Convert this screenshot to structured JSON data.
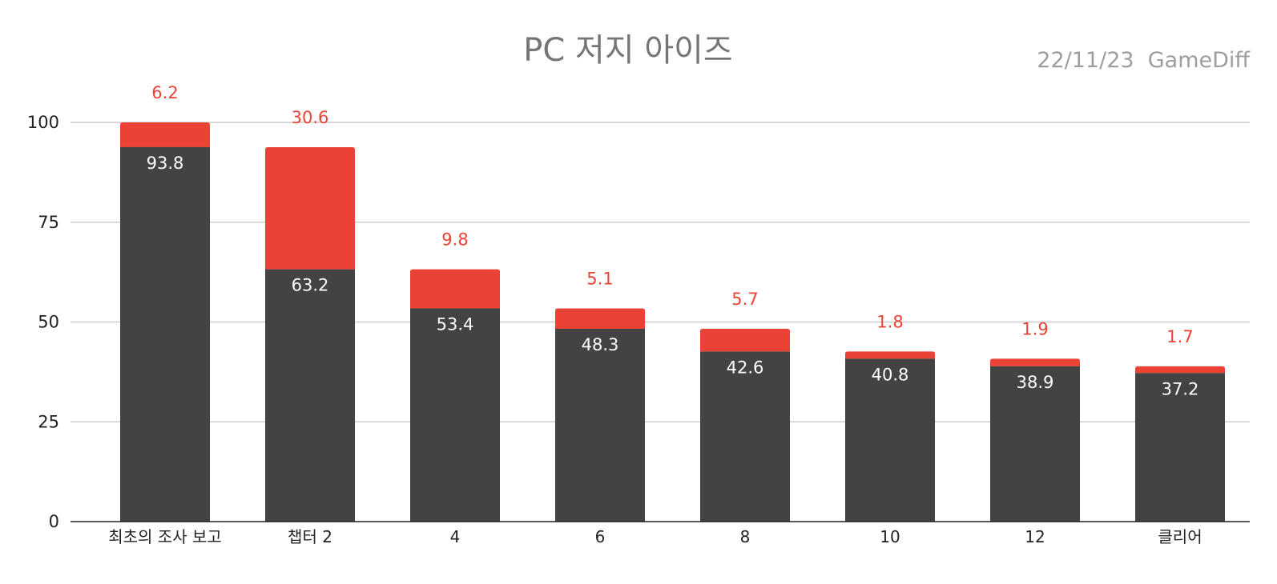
{
  "chart_data": {
    "type": "bar",
    "stacked": true,
    "title": "PC 저지 아이즈",
    "credit": "22/11/23  GameDiff",
    "categories": [
      "최초의 조사 보고",
      "챕터 2",
      "4",
      "6",
      "8",
      "10",
      "12",
      "클리어"
    ],
    "series": [
      {
        "color": "#434343",
        "values": [
          93.8,
          63.2,
          53.4,
          48.3,
          42.6,
          40.8,
          38.9,
          37.2
        ]
      },
      {
        "color": "#ea4335",
        "values": [
          6.2,
          30.6,
          9.8,
          5.1,
          5.7,
          1.8,
          1.9,
          1.7
        ]
      }
    ],
    "y_ticks": [
      "0",
      "25",
      "50",
      "75",
      "100"
    ],
    "ylim": [
      0,
      100
    ],
    "grid": true,
    "legend": "none"
  }
}
